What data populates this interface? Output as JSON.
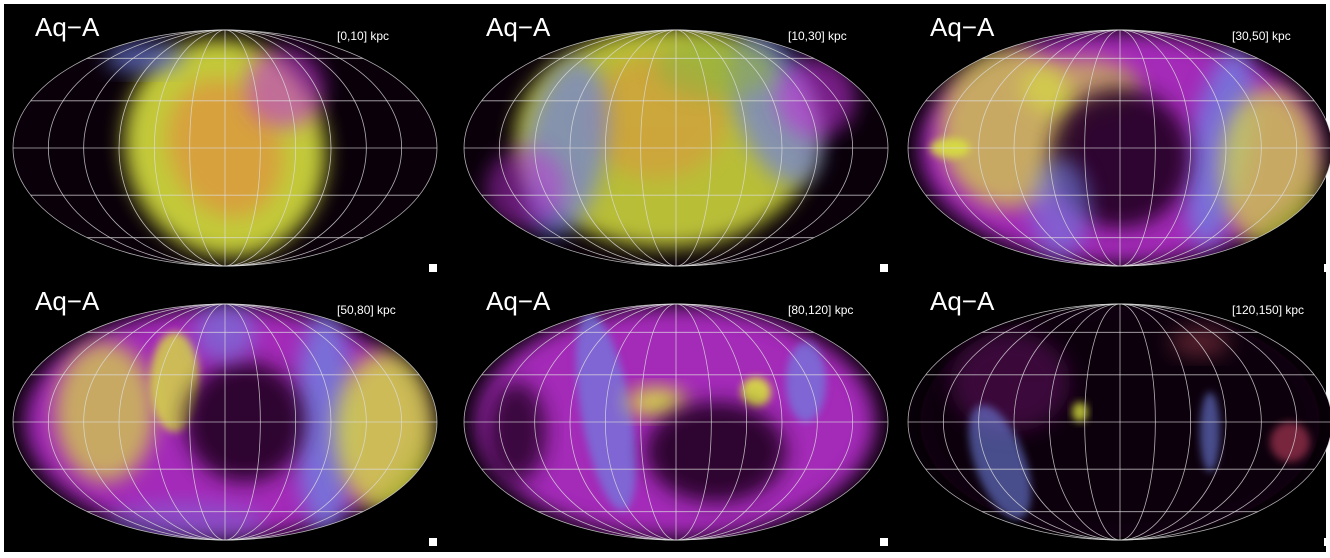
{
  "panels": [
    {
      "label": "Aq−A",
      "range": "[0,10] kpc"
    },
    {
      "label": "Aq−A",
      "range": "[10,30] kpc"
    },
    {
      "label": "Aq−A",
      "range": "[30,50] kpc"
    },
    {
      "label": "Aq−A",
      "range": "[50,80] kpc"
    },
    {
      "label": "Aq−A",
      "range": "[80,120] kpc"
    },
    {
      "label": "Aq−A",
      "range": "[120,150] kpc"
    }
  ]
}
